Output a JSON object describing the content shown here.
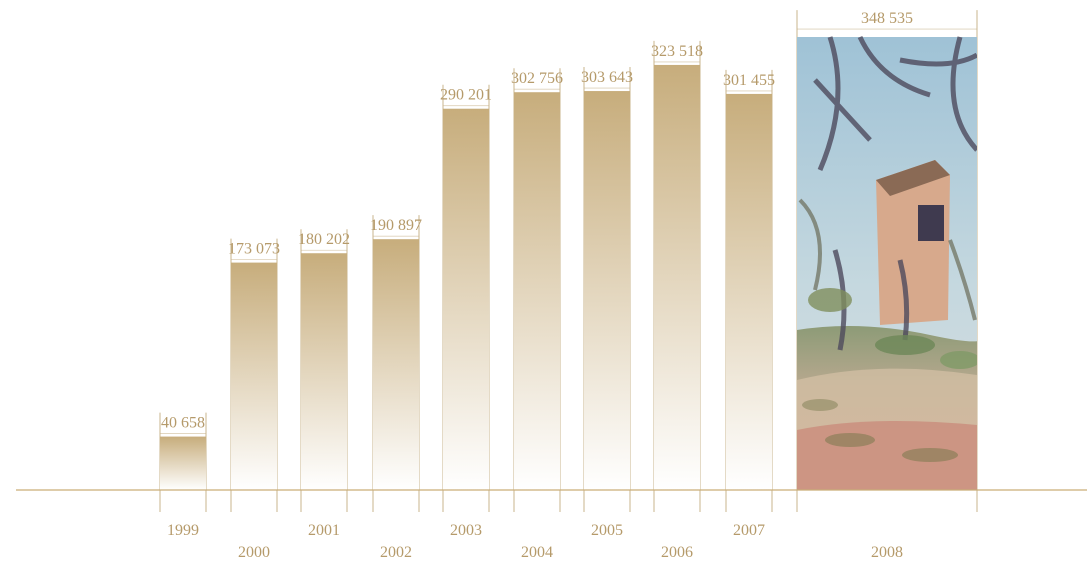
{
  "chart_data": {
    "type": "bar",
    "categories": [
      "1999",
      "2000",
      "2001",
      "2002",
      "2003",
      "2004",
      "2005",
      "2006",
      "2007",
      "2008"
    ],
    "values": [
      40658,
      173073,
      180202,
      190897,
      290201,
      302756,
      303643,
      323518,
      301455,
      348535
    ],
    "value_labels": [
      "40 658",
      "173 073",
      "180 202",
      "190 897",
      "290 201",
      "302 756",
      "303 643",
      "323 518",
      "301 455",
      "348 535"
    ],
    "highlight_last_bar_as_painting": true,
    "ylim": [
      0,
      360000
    ],
    "grid": false,
    "legend": "none"
  },
  "colors": {
    "bar_top": "#c7ad7c",
    "bar_bottom": "#ffffff",
    "text": "#b59a6a",
    "guide_line": "#c9b48c",
    "axis_line": "#c9ad78"
  }
}
